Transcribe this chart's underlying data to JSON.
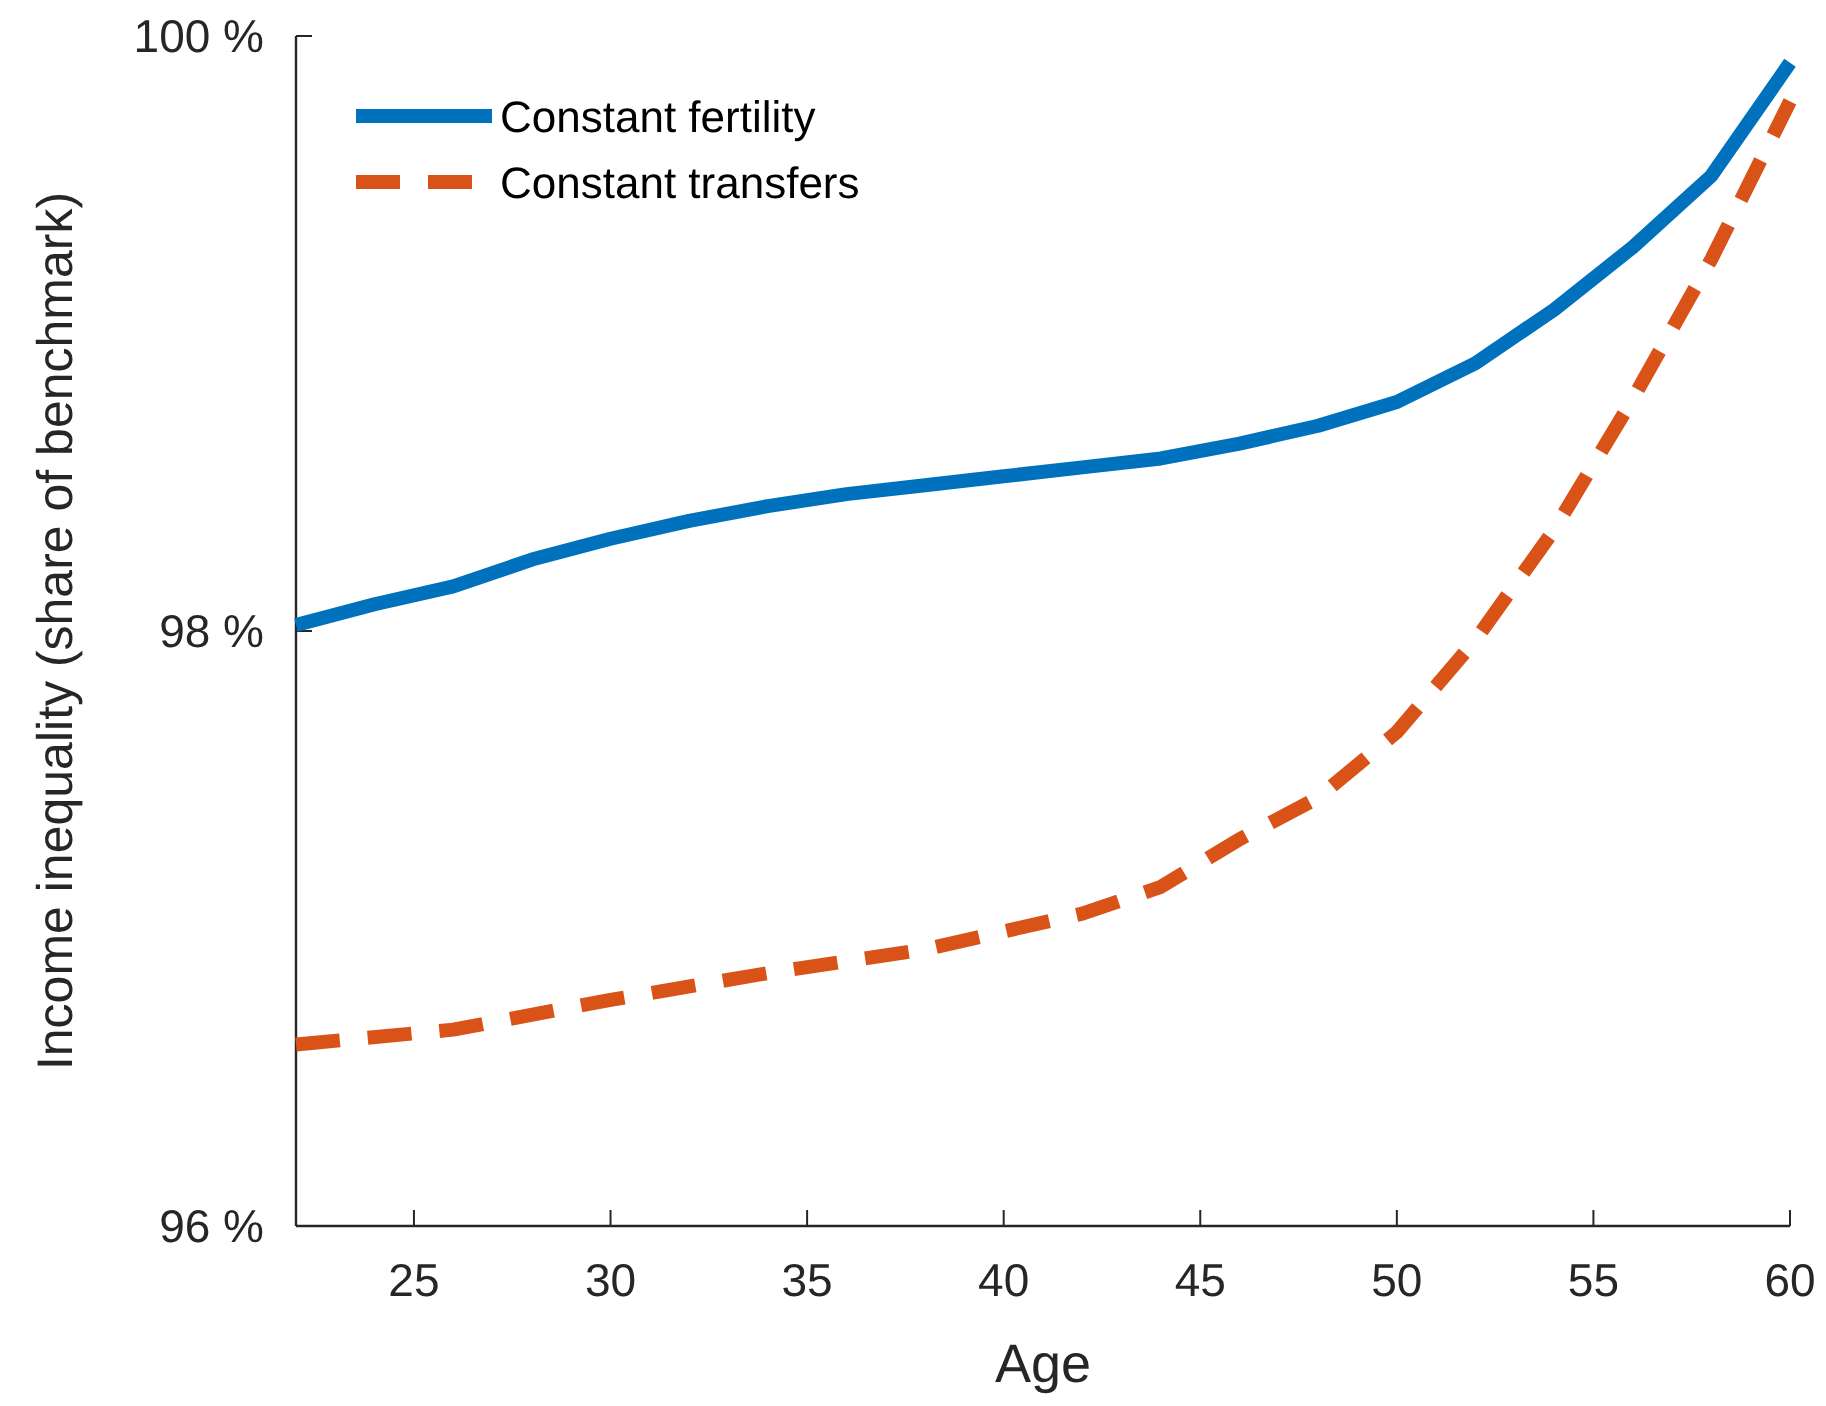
{
  "chart_data": {
    "type": "line",
    "xlabel": "Age",
    "ylabel": "Income inequality (share of benchmark)",
    "xlim": [
      22,
      60
    ],
    "xticks": [
      25,
      30,
      35,
      40,
      45,
      50,
      55,
      60
    ],
    "ylim": [
      96,
      100
    ],
    "yticks": [
      {
        "value": 96,
        "label": "96 %"
      },
      {
        "value": 98,
        "label": "98 %"
      },
      {
        "value": 100,
        "label": "100 %"
      }
    ],
    "grid": false,
    "legend": "top left",
    "series": [
      {
        "name": "Constant fertility",
        "color": "#0072bd",
        "line_style": "solid",
        "x": [
          22,
          24,
          26,
          28,
          30,
          32,
          34,
          36,
          38,
          40,
          42,
          44,
          46,
          48,
          50,
          52,
          54,
          56,
          58,
          60
        ],
        "values": [
          98.02,
          98.09,
          98.15,
          98.24,
          98.31,
          98.37,
          98.42,
          98.46,
          98.49,
          98.52,
          98.55,
          98.58,
          98.63,
          98.69,
          98.77,
          98.9,
          99.08,
          99.29,
          99.53,
          99.91
        ]
      },
      {
        "name": "Constant transfers",
        "color": "#d95319",
        "line_style": "dashed",
        "x": [
          22,
          26,
          30,
          34,
          38,
          40,
          42,
          44,
          46,
          48,
          50,
          52,
          54,
          56,
          58,
          60
        ],
        "values": [
          96.61,
          96.66,
          96.76,
          96.85,
          96.93,
          96.99,
          97.05,
          97.14,
          97.3,
          97.44,
          97.66,
          97.97,
          98.34,
          98.78,
          99.25,
          99.78
        ]
      }
    ]
  }
}
